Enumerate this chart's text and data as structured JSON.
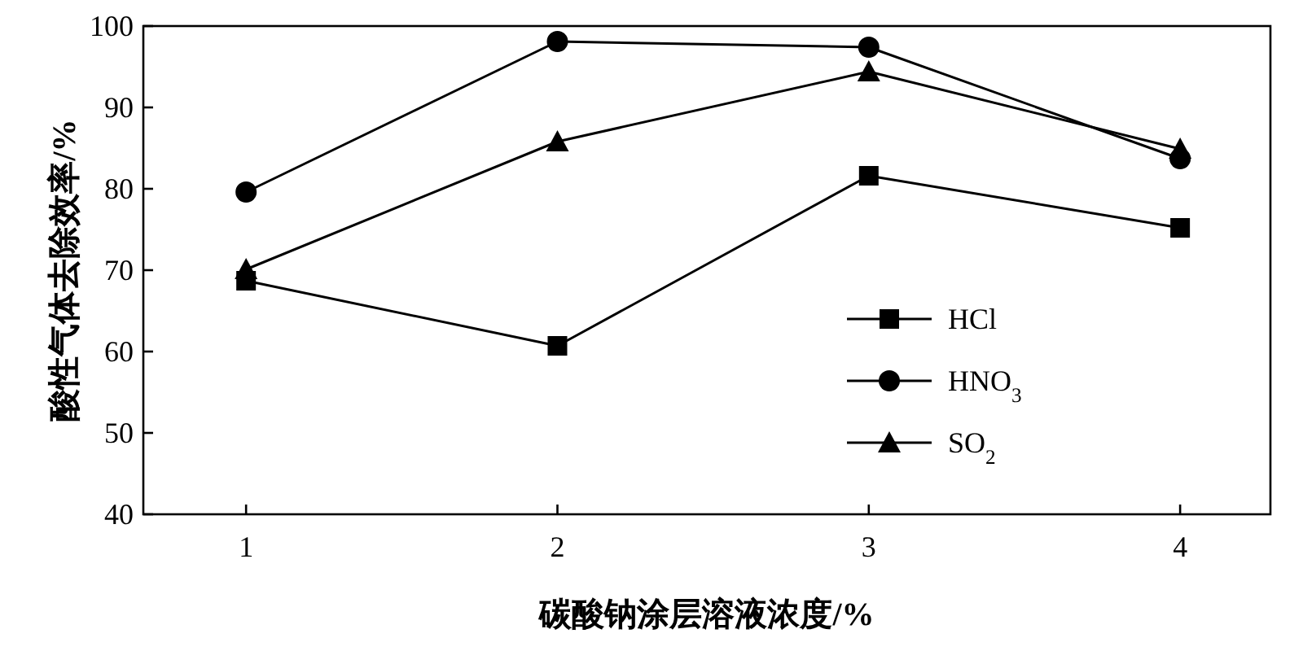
{
  "chart_data": {
    "type": "line",
    "xlabel": "碳酸钠涂层溶液浓度/%",
    "ylabel": "酸性气体去除效率/%",
    "x": [
      1,
      2,
      3,
      4
    ],
    "xlim": [
      0.67,
      4.29
    ],
    "xticks": [
      1,
      2,
      3,
      4
    ],
    "ylim": [
      40,
      100
    ],
    "yticks": [
      40,
      50,
      60,
      70,
      80,
      90,
      100
    ],
    "legend": "right",
    "grid": false,
    "series": [
      {
        "name": "HCl",
        "color": "#000000",
        "marker": "square",
        "values": [
          68.7,
          60.7,
          81.6,
          75.2
        ]
      },
      {
        "name": "HNO$_{3}$",
        "color": "#000000",
        "marker": "circle",
        "values": [
          79.6,
          98.1,
          97.4,
          83.7
        ]
      },
      {
        "name": "SO$_{2}$",
        "color": "#000000",
        "marker": "triangle",
        "values": [
          70.1,
          85.8,
          94.4,
          84.9
        ]
      }
    ]
  }
}
